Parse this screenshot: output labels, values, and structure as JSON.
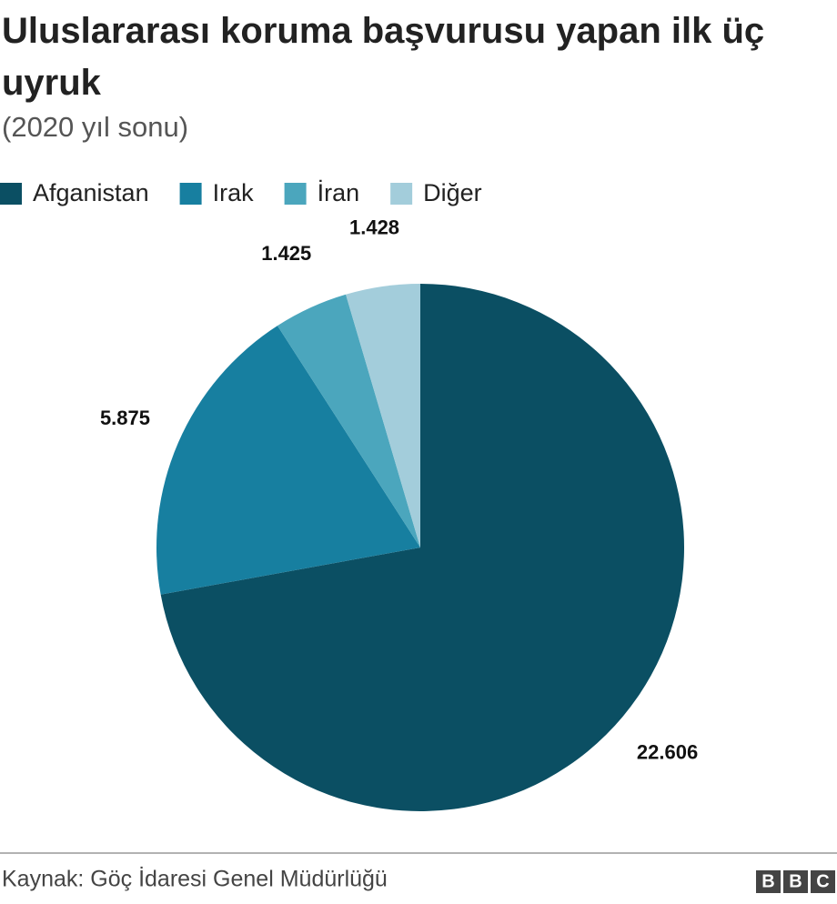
{
  "chart_data": {
    "type": "pie",
    "title": "Uluslararası koruma başvurusu yapan ilk üç uyruk",
    "subtitle": "(2020 yıl sonu)",
    "categories": [
      "Afganistan",
      "Irak",
      "İran",
      "Diğer"
    ],
    "values": [
      22606,
      5875,
      1425,
      1428
    ],
    "value_labels": [
      "22.606",
      "5.875",
      "1.425",
      "1.428"
    ],
    "colors": [
      "#0b4f63",
      "#177fa0",
      "#4ba6bd",
      "#a3cddb"
    ],
    "legend": "top-left",
    "source": "Kaynak: Göç İdaresi Genel Müdürlüğü",
    "logo": [
      "B",
      "B",
      "C"
    ]
  }
}
